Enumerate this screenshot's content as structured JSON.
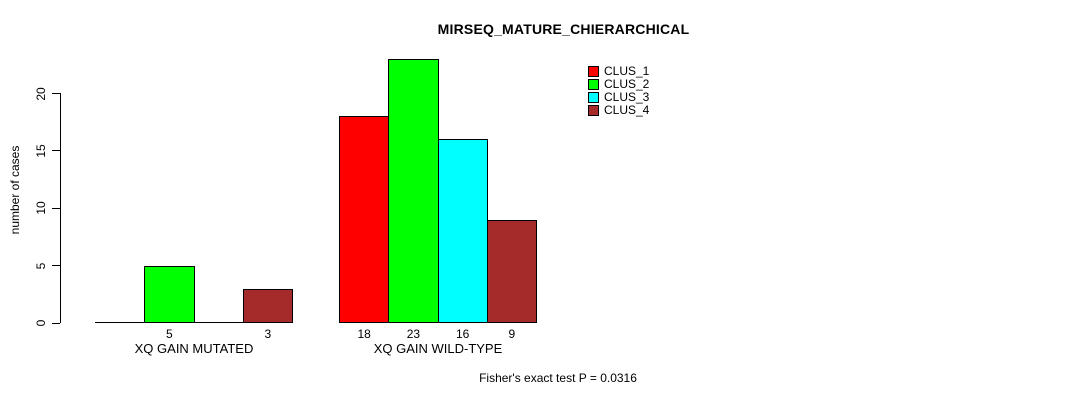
{
  "chart_data": {
    "type": "bar",
    "title": "MIRSEQ_MATURE_CHIERARCHICAL",
    "ylabel": "number of cases",
    "xlabel": "",
    "categories": [
      "XQ GAIN MUTATED",
      "XQ GAIN WILD-TYPE"
    ],
    "series": [
      {
        "name": "CLUS_1",
        "color": "#ff0000",
        "values": [
          0,
          18
        ]
      },
      {
        "name": "CLUS_2",
        "color": "#00ff00",
        "values": [
          5,
          23
        ]
      },
      {
        "name": "CLUS_3",
        "color": "#00ffff",
        "values": [
          0,
          16
        ]
      },
      {
        "name": "CLUS_4",
        "color": "#a52a2a",
        "values": [
          3,
          9
        ]
      }
    ],
    "bar_labels": [
      [
        "",
        "5",
        "",
        "3"
      ],
      [
        "18",
        "23",
        "16",
        "9"
      ]
    ],
    "yticks": [
      0,
      5,
      10,
      15,
      20
    ],
    "ylim": [
      0,
      20
    ],
    "grid": false,
    "legend_position": "top-right",
    "axis_color": "#000000",
    "annotation": "Fisher's exact test P = 0.0316"
  }
}
